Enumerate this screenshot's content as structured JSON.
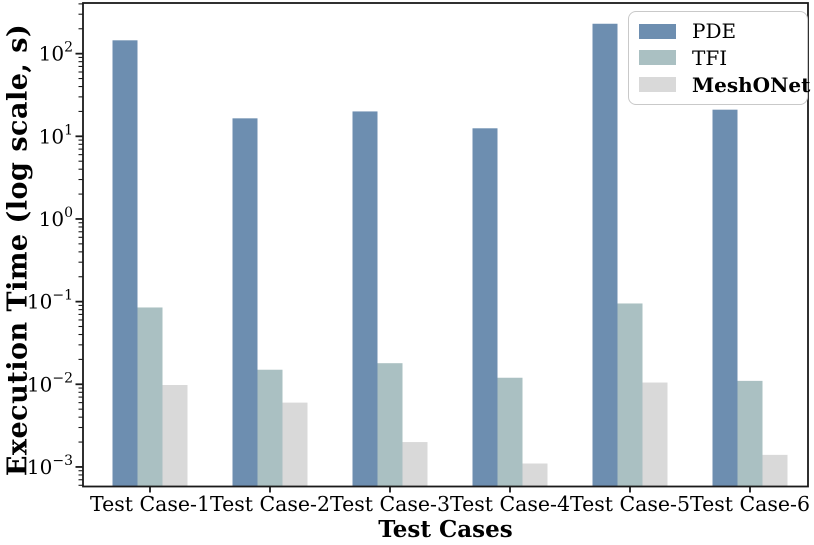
{
  "chart_data": {
    "type": "bar",
    "title": "",
    "xlabel": "Test Cases",
    "ylabel": "Execution Time (log scale, s)",
    "yscale": "log",
    "ylim": [
      0.00058,
      410
    ],
    "grid": false,
    "legend_position": "upper right",
    "categories": [
      "Test Case-1",
      "Test Case-2",
      "Test Case-3",
      "Test Case-4",
      "Test Case-5",
      "Test Case-6"
    ],
    "series": [
      {
        "name": "PDE",
        "color": "#6d8eb0",
        "bold_legend": false,
        "values": [
          145,
          16.5,
          20,
          12.5,
          230,
          21
        ]
      },
      {
        "name": "TFI",
        "color": "#aac0c2",
        "bold_legend": false,
        "values": [
          0.085,
          0.015,
          0.018,
          0.012,
          0.095,
          0.011
        ]
      },
      {
        "name": "MeshONet",
        "color": "#d9d9d9",
        "bold_legend": true,
        "values": [
          0.0098,
          0.006,
          0.002,
          0.0011,
          0.0105,
          0.0014
        ]
      }
    ],
    "ytick_labels": [
      "10²",
      "10¹",
      "10⁰",
      "10⁻¹",
      "10⁻²",
      "10⁻³"
    ],
    "ytick_exponents": [
      2,
      1,
      0,
      -1,
      -2,
      -3
    ],
    "axis_color": "#1a1a1a",
    "text_color": "#000000"
  }
}
